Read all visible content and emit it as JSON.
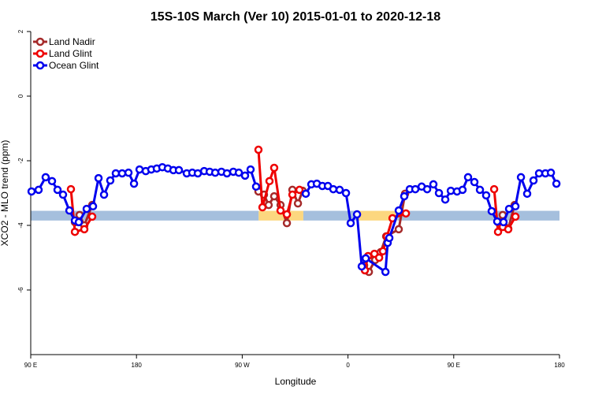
{
  "chart_data": {
    "type": "line",
    "title": "15S-10S March (Ver 10)   2015-01-01 to 2020-12-18",
    "x_label": "Longitude",
    "y_label": "XCO2 - MLO trend (ppm)",
    "xlim": [
      90,
      540
    ],
    "xticks": [
      {
        "value": 90,
        "label": "90 E"
      },
      180,
      {
        "value": 270,
        "label": "90 W"
      },
      {
        "value": 360,
        "label": "0"
      },
      {
        "value": 450,
        "label": "90 E"
      },
      180.0001
    ],
    "ylim": [
      -8,
      2
    ],
    "yticks": [
      2,
      0,
      -2,
      -4,
      -6
    ],
    "legend": "top-left",
    "background_band": {
      "y": [
        -3.85,
        -3.55
      ],
      "segments": [
        {
          "x": [
            90,
            284
          ],
          "color": "#a5bfdd"
        },
        {
          "x": [
            284,
            322
          ],
          "color": "#fcd77f"
        },
        {
          "x": [
            322,
            369
          ],
          "color": "#a5bfdd"
        },
        {
          "x": [
            369,
            402
          ],
          "color": "#fcd77f"
        },
        {
          "x": [
            402,
            540
          ],
          "color": "#a5bfdd"
        }
      ]
    },
    "series": [
      {
        "name": "Land Nadir",
        "color": "#a52a2a",
        "x": [
          127.6,
          131.6,
          135.6,
          142.3,
          null,
          283.8,
          288.5,
          292.5,
          297.2,
          302.6,
          308.0,
          312.7,
          317.4,
          321.4,
          null,
          373.7,
          377.8,
          383.1,
          387.8,
          392.5,
          403.2,
          408.6,
          null,
          487.7,
          491.7,
          496.4,
          501.8
        ],
        "values": [
          -3.9,
          -3.68,
          -4.0,
          -3.37,
          null,
          -2.95,
          -3.05,
          -3.37,
          -3.1,
          -3.37,
          -3.93,
          -2.9,
          -3.32,
          -2.93,
          null,
          -5.24,
          -5.44,
          -5.07,
          -4.83,
          -4.34,
          -4.12,
          -3.02,
          null,
          -3.9,
          -3.68,
          -4.1,
          -3.37
        ]
      },
      {
        "name": "Land Glint",
        "color": "#ee0000",
        "x": [
          124.2,
          127.6,
          135.6,
          142.3,
          null,
          283.8,
          287.2,
          293.2,
          297.2,
          302.6,
          308.0,
          312.7,
          318.7,
          null,
          374.4,
          377.1,
          382.5,
          386.5,
          389.8,
          393.2,
          397.9,
          409.3,
          null,
          484.4,
          487.7,
          491.7,
          496.4,
          502.5
        ],
        "values": [
          -2.88,
          -4.2,
          -4.12,
          -3.73,
          null,
          -1.66,
          -3.44,
          -2.63,
          -2.22,
          -3.54,
          -3.66,
          -3.05,
          -2.9,
          null,
          -5.39,
          -4.95,
          -4.88,
          -5.0,
          -4.8,
          -4.34,
          -3.78,
          -3.63,
          null,
          -2.88,
          -4.2,
          -4.05,
          -4.12,
          -3.73
        ]
      },
      {
        "name": "Ocean Glint",
        "color": "#0000ee",
        "x": [
          90.7,
          96.7,
          102.7,
          108.1,
          112.8,
          117.5,
          122.9,
          127.6,
          130.9,
          137.6,
          143.0,
          147.7,
          152.4,
          157.7,
          162.4,
          167.8,
          173.2,
          177.9,
          182.6,
          187.9,
          192.6,
          197.3,
          202.0,
          206.7,
          211.4,
          216.1,
          222.8,
          227.5,
          232.2,
          237.6,
          242.3,
          247.0,
          252.3,
          257.0,
          262.4,
          267.1,
          272.4,
          277.1,
          281.8,
          null,
          324.1,
          328.8,
          333.5,
          338.2,
          342.9,
          347.5,
          352.9,
          358.3,
          362.3,
          367.7,
          371.7,
          375.1,
          391.9,
          393.8,
          395.2,
          403.2,
          407.9,
          412.6,
          417.3,
          422.7,
          427.4,
          432.7,
          437.4,
          442.8,
          447.5,
          452.8,
          457.5,
          462.2,
          467.6,
          472.3,
          477.6,
          482.3,
          487.0,
          492.4,
          497.1,
          502.5,
          507.2,
          512.5,
          517.9,
          522.6,
          528.0,
          532.7,
          537.4
        ],
        "values": [
          -2.95,
          -2.9,
          -2.51,
          -2.63,
          -2.9,
          -3.05,
          -3.54,
          -3.85,
          -3.9,
          -3.49,
          -3.41,
          -2.54,
          -3.05,
          -2.61,
          -2.39,
          -2.39,
          -2.37,
          -2.71,
          -2.27,
          -2.32,
          -2.27,
          -2.24,
          -2.2,
          -2.24,
          -2.29,
          -2.29,
          -2.39,
          -2.37,
          -2.39,
          -2.32,
          -2.34,
          -2.37,
          -2.34,
          -2.39,
          -2.34,
          -2.37,
          -2.46,
          -2.27,
          -2.8,
          null,
          -3.02,
          -2.73,
          -2.71,
          -2.78,
          -2.78,
          -2.88,
          -2.9,
          -3.0,
          -3.93,
          -3.66,
          -5.27,
          -5.02,
          -5.44,
          -4.54,
          -4.39,
          -3.54,
          -3.1,
          -2.88,
          -2.88,
          -2.8,
          -2.88,
          -2.73,
          -3.0,
          -3.2,
          -2.93,
          -2.95,
          -2.9,
          -2.51,
          -2.66,
          -2.9,
          -3.07,
          -3.56,
          -3.88,
          -3.9,
          -3.49,
          -3.41,
          -2.51,
          -3.02,
          -2.61,
          -2.39,
          -2.39,
          -2.37,
          -2.71
        ]
      }
    ]
  }
}
